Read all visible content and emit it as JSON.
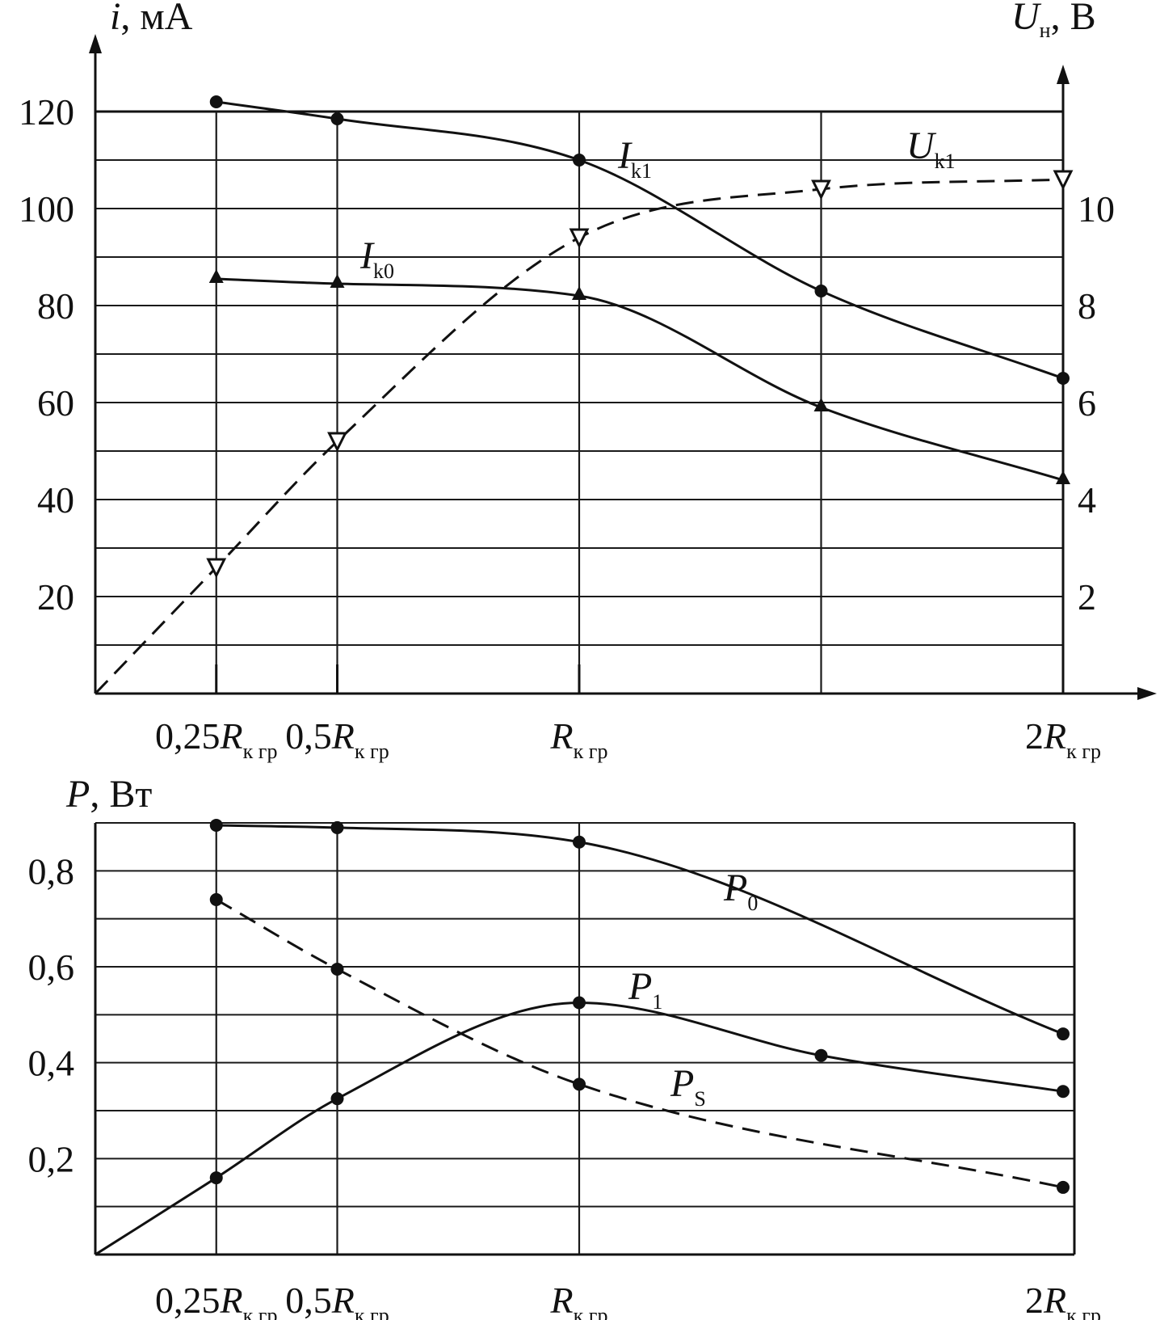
{
  "chart_data": [
    {
      "type": "line",
      "ylabel": {
        "main": "i",
        "unit": ", мА"
      },
      "y2label": {
        "main": "U",
        "sub": "н",
        "unit": ", В"
      },
      "ylim": [
        0,
        120
      ],
      "y2lim": [
        0,
        12
      ],
      "y_ticks": [
        "20",
        "40",
        "60",
        "80",
        "100",
        "120"
      ],
      "y2_ticks": [
        "2",
        "4",
        "6",
        "8",
        "10"
      ],
      "x_ticks": [
        {
          "x": 0.25,
          "pre": "0,25",
          "main": "R",
          "sub": "к гр"
        },
        {
          "x": 0.5,
          "pre": "0,5",
          "main": "R",
          "sub": "к гр"
        },
        {
          "x": 1.0,
          "pre": "",
          "main": "R",
          "sub": "к гр"
        },
        {
          "x": 2.0,
          "pre": "2",
          "main": "R",
          "sub": "к гр"
        }
      ],
      "xlim": [
        0,
        2
      ],
      "grid": true,
      "series": [
        {
          "name": {
            "main": "I",
            "sub": "k1"
          },
          "axis": "left",
          "style": "solid",
          "marker": "dot",
          "x": [
            0.25,
            0.5,
            1.0,
            1.5,
            2.0
          ],
          "y": [
            122,
            118.5,
            110,
            83,
            65
          ]
        },
        {
          "name": {
            "main": "I",
            "sub": "k0"
          },
          "axis": "left",
          "style": "solid",
          "marker": "triangle-up",
          "x": [
            0.25,
            0.5,
            1.0,
            1.5,
            2.0
          ],
          "y": [
            85.5,
            84.5,
            82,
            59,
            44
          ]
        },
        {
          "name": {
            "main": "U",
            "sub": "k1"
          },
          "axis": "right",
          "style": "dashed",
          "marker": "triangle-down",
          "x": [
            0.25,
            0.5,
            1.0,
            1.5,
            2.0
          ],
          "y": [
            2.6,
            5.2,
            9.4,
            10.4,
            10.6
          ]
        }
      ]
    },
    {
      "type": "line",
      "ylabel": {
        "main": "P",
        "unit": ", Вт"
      },
      "ylim": [
        0,
        0.9
      ],
      "y_ticks": [
        "0,2",
        "0,4",
        "0,6",
        "0,8"
      ],
      "x_ticks": [
        {
          "x": 0.25,
          "pre": "0,25",
          "main": "R",
          "sub": "к гр"
        },
        {
          "x": 0.5,
          "pre": "0,5",
          "main": "R",
          "sub": "к гр"
        },
        {
          "x": 1.0,
          "pre": "",
          "main": "R",
          "sub": "к гр"
        },
        {
          "x": 2.0,
          "pre": "2",
          "main": "R",
          "sub": "к гр"
        }
      ],
      "xlim": [
        0,
        2
      ],
      "grid": true,
      "series": [
        {
          "name": {
            "main": "P",
            "sub": "0"
          },
          "style": "solid",
          "marker": "dot",
          "x": [
            0.25,
            0.5,
            1.0,
            2.0
          ],
          "y": [
            0.895,
            0.89,
            0.86,
            0.46
          ]
        },
        {
          "name": {
            "main": "P",
            "sub": "1"
          },
          "style": "solid",
          "marker": "dot",
          "x": [
            0.25,
            0.5,
            1.0,
            1.5,
            2.0
          ],
          "y": [
            0.16,
            0.325,
            0.525,
            0.415,
            0.34
          ]
        },
        {
          "name": {
            "main": "P",
            "sub": "S"
          },
          "style": "dashed",
          "marker": "dot",
          "x": [
            0.25,
            0.5,
            1.0,
            2.0
          ],
          "y": [
            0.74,
            0.595,
            0.355,
            0.14
          ]
        }
      ]
    }
  ]
}
